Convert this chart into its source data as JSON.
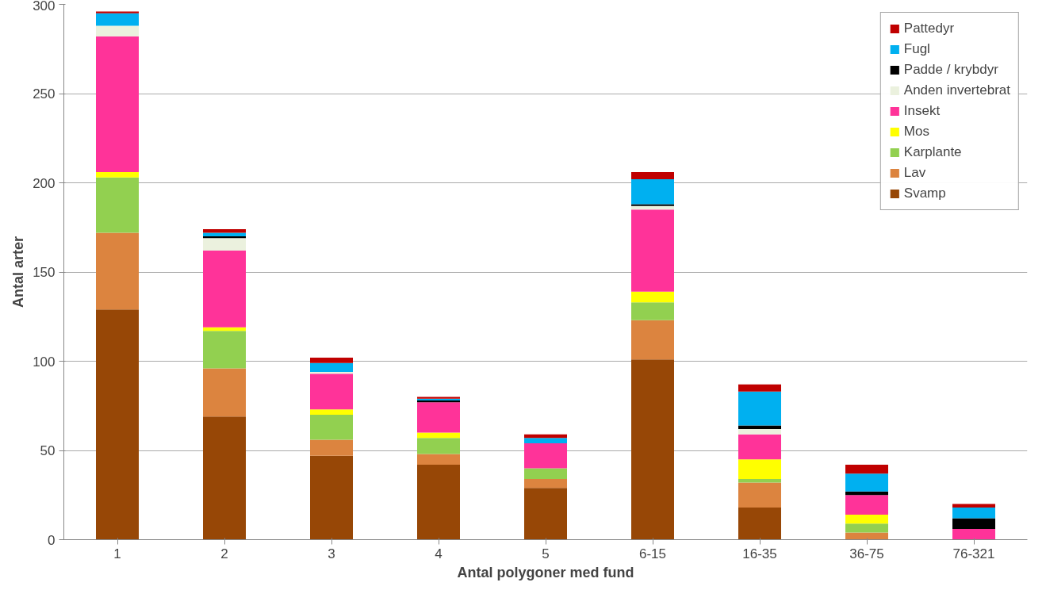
{
  "chart_data": {
    "type": "bar",
    "stacked": true,
    "xlabel": "Antal polygoner med fund",
    "ylabel": "Antal arter",
    "categories": [
      "1",
      "2",
      "3",
      "4",
      "5",
      "6-15",
      "16-35",
      "36-75",
      "76-321"
    ],
    "ylim": [
      0,
      300
    ],
    "yticks": [
      0,
      50,
      100,
      150,
      200,
      250,
      300
    ],
    "grid": "y",
    "legend": "top right",
    "series": [
      {
        "name": "Svamp",
        "color": "#974706",
        "values": [
          129,
          69,
          47,
          42,
          29,
          101,
          18,
          0,
          0
        ]
      },
      {
        "name": "Lav",
        "color": "#dc843f",
        "values": [
          43,
          27,
          9,
          6,
          5,
          22,
          14,
          4,
          0
        ]
      },
      {
        "name": "Karplante",
        "color": "#92d050",
        "values": [
          31,
          21,
          14,
          9,
          6,
          10,
          2,
          5,
          0
        ]
      },
      {
        "name": "Mos",
        "color": "#ffff00",
        "values": [
          3,
          2,
          3,
          3,
          0,
          6,
          11,
          5,
          0
        ]
      },
      {
        "name": "Insekt",
        "color": "#ff3399",
        "values": [
          76,
          43,
          20,
          17,
          14,
          46,
          14,
          11,
          6
        ]
      },
      {
        "name": "Anden invertebrat",
        "color": "#ebf1de",
        "values": [
          6,
          7,
          1,
          0,
          0,
          2,
          3,
          0,
          0
        ]
      },
      {
        "name": "Padde / krybdyr",
        "color": "#000000",
        "values": [
          0,
          1,
          0,
          1,
          0,
          1,
          2,
          2,
          6
        ]
      },
      {
        "name": "Fugl",
        "color": "#00b0f0",
        "values": [
          7,
          2,
          5,
          1,
          3,
          14,
          19,
          10,
          6
        ]
      },
      {
        "name": "Pattedyr",
        "color": "#c00000",
        "values": [
          1,
          2,
          3,
          1,
          2,
          4,
          4,
          5,
          2
        ]
      }
    ]
  }
}
